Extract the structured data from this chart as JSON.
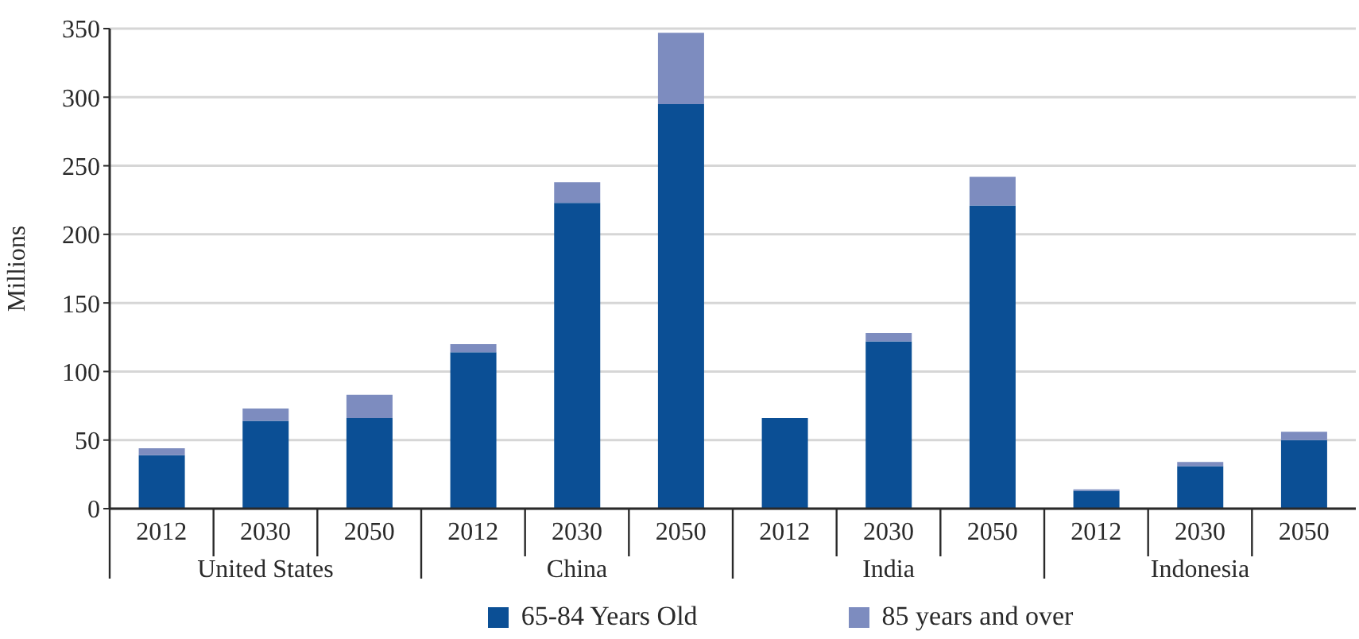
{
  "chart_data": {
    "type": "bar",
    "stacked": true,
    "categories": [
      "2012",
      "2030",
      "2050",
      "2012",
      "2030",
      "2050",
      "2012",
      "2030",
      "2050",
      "2012",
      "2030",
      "2050"
    ],
    "series": [
      {
        "name": "65-84 Years Old",
        "color": "#0b4f95",
        "values": [
          39,
          64,
          66,
          114,
          223,
          295,
          66,
          122,
          221,
          13,
          31,
          50
        ]
      },
      {
        "name": "85 years and over",
        "color": "#7d8cbf",
        "values": [
          5,
          9,
          17,
          6,
          15,
          52,
          0,
          6,
          21,
          1,
          3,
          6
        ]
      }
    ],
    "ylabel": "Millions",
    "ylim": [
      0,
      350
    ],
    "yticks": [
      0,
      50,
      100,
      150,
      200,
      250,
      300,
      350
    ],
    "grid": "y",
    "legend": "bottom",
    "annotations": [
      "United States",
      "China",
      "India",
      "Indonesia"
    ]
  }
}
